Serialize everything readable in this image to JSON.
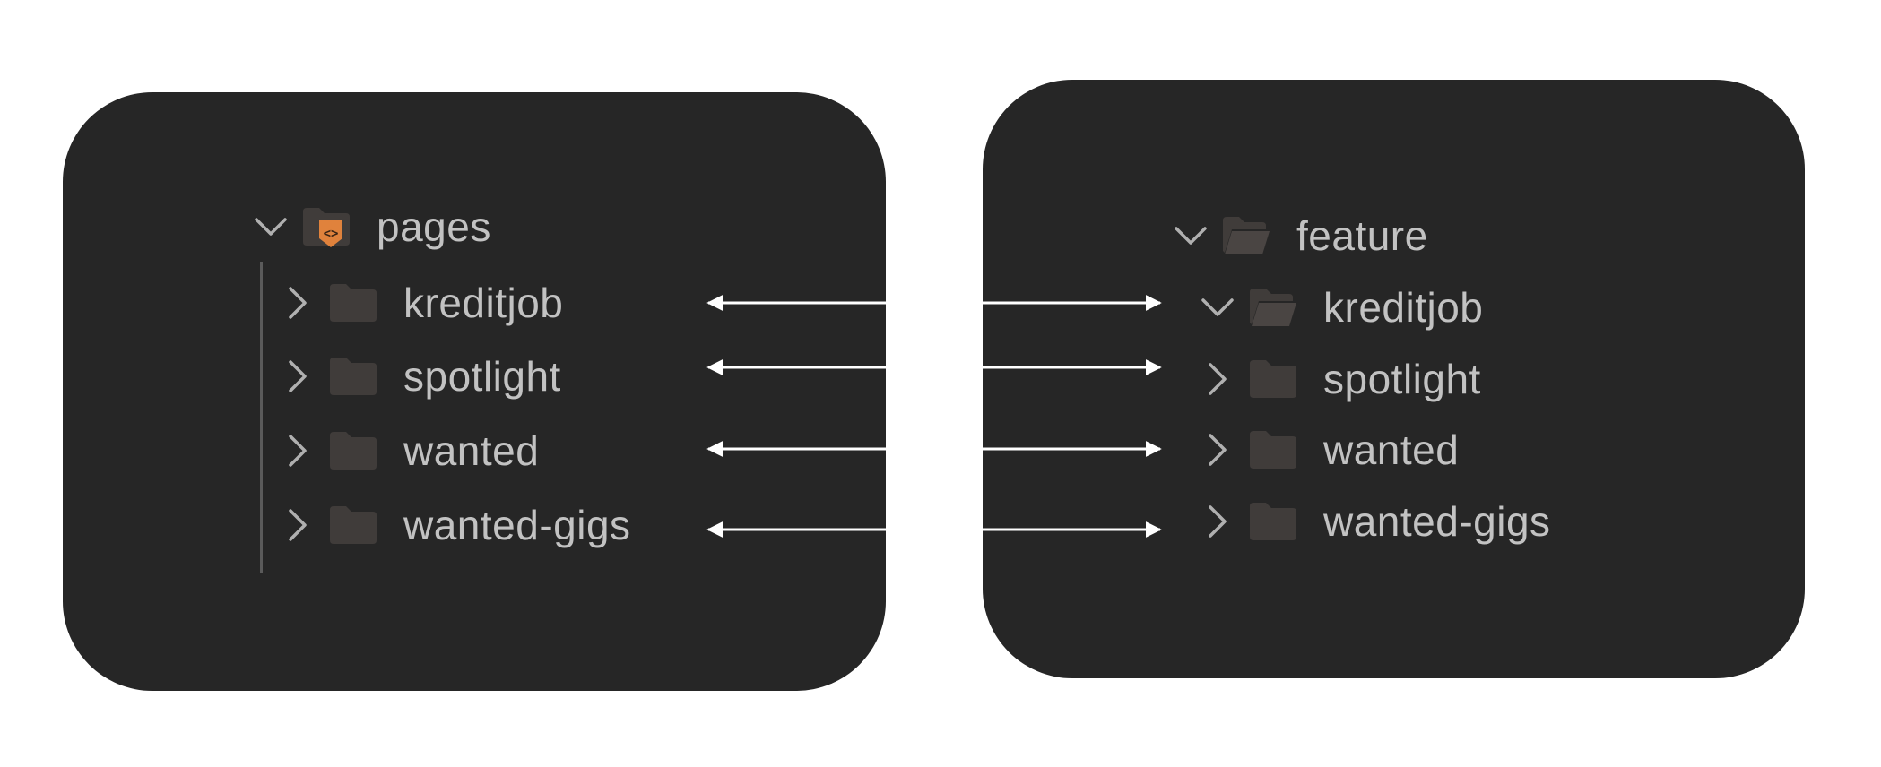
{
  "left_tree": {
    "root": {
      "label": "pages",
      "chevron_icon": "chevron-down-icon",
      "folder_icon": "folder-code-icon",
      "expanded": true
    },
    "items": [
      {
        "label": "kreditjob",
        "chevron_icon": "chevron-right-icon",
        "folder_icon": "folder-closed-icon",
        "expanded": false
      },
      {
        "label": "spotlight",
        "chevron_icon": "chevron-right-icon",
        "folder_icon": "folder-closed-icon",
        "expanded": false
      },
      {
        "label": "wanted",
        "chevron_icon": "chevron-right-icon",
        "folder_icon": "folder-closed-icon",
        "expanded": false
      },
      {
        "label": "wanted-gigs",
        "chevron_icon": "chevron-right-icon",
        "folder_icon": "folder-closed-icon",
        "expanded": false
      }
    ]
  },
  "right_tree": {
    "root": {
      "label": "feature",
      "chevron_icon": "chevron-down-icon",
      "folder_icon": "folder-open-icon",
      "expanded": true
    },
    "items": [
      {
        "label": "kreditjob",
        "chevron_icon": "chevron-down-icon",
        "folder_icon": "folder-open-icon",
        "expanded": true
      },
      {
        "label": "spotlight",
        "chevron_icon": "chevron-right-icon",
        "folder_icon": "folder-closed-icon",
        "expanded": false
      },
      {
        "label": "wanted",
        "chevron_icon": "chevron-right-icon",
        "folder_icon": "folder-closed-icon",
        "expanded": false
      },
      {
        "label": "wanted-gigs",
        "chevron_icon": "chevron-right-icon",
        "folder_icon": "folder-closed-icon",
        "expanded": false
      }
    ]
  },
  "colors": {
    "background": "#ffffff",
    "panel": "#262626",
    "text": "#c2c2c2",
    "folder": "#403c3a",
    "chevron": "#b0b0b0",
    "accent_orange": "#e0823c",
    "arrow": "#ffffff"
  }
}
